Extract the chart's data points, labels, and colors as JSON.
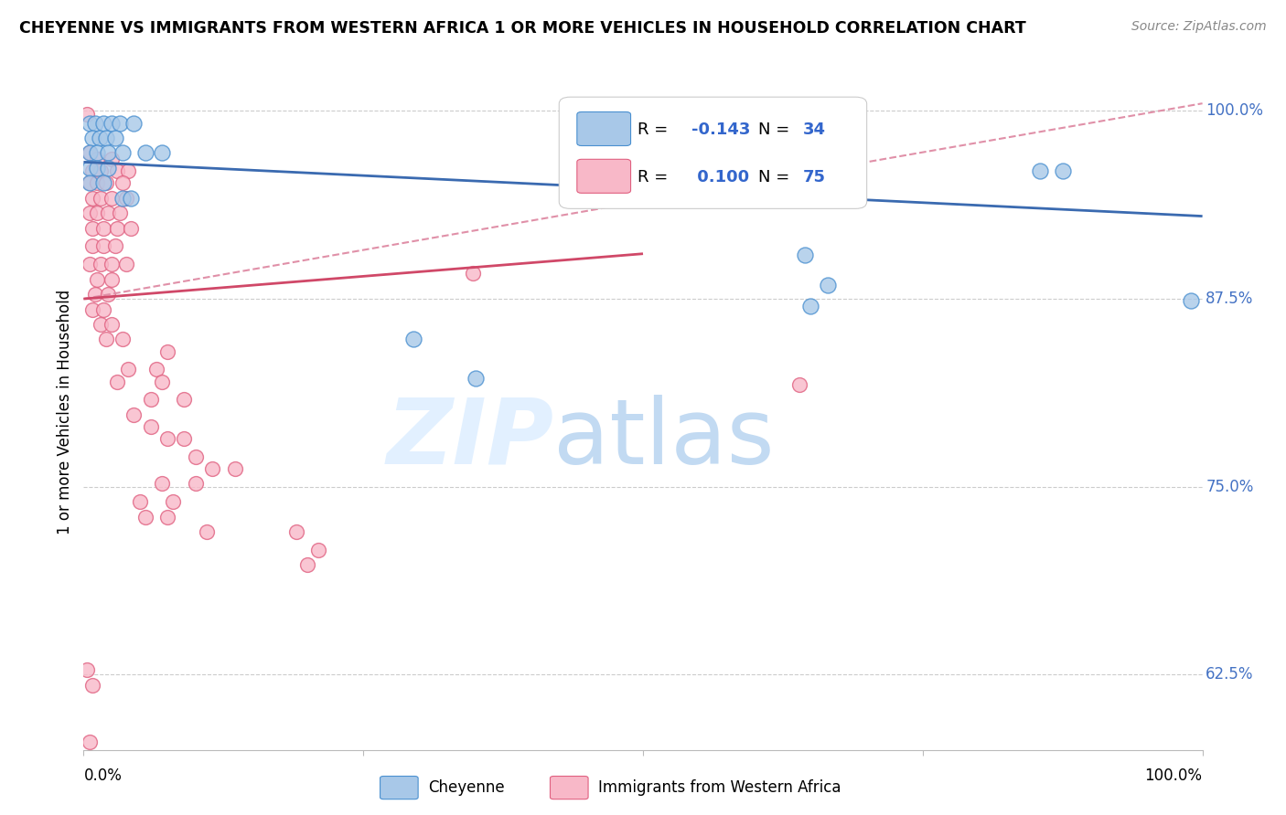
{
  "title": "CHEYENNE VS IMMIGRANTS FROM WESTERN AFRICA 1 OR MORE VEHICLES IN HOUSEHOLD CORRELATION CHART",
  "source": "Source: ZipAtlas.com",
  "ylabel": "1 or more Vehicles in Household",
  "xlim": [
    0.0,
    1.0
  ],
  "ylim": [
    0.575,
    1.025
  ],
  "yticks": [
    0.625,
    0.75,
    0.875,
    1.0
  ],
  "ytick_labels": [
    "62.5%",
    "75.0%",
    "87.5%",
    "100.0%"
  ],
  "blue_color": "#a8c8e8",
  "pink_color": "#f8b8c8",
  "blue_edge_color": "#4a90d0",
  "pink_edge_color": "#e06080",
  "blue_line_color": "#3a6ab0",
  "pink_line_color": "#d04868",
  "dashed_line_color": "#e090a8",
  "blue_trend": [
    0.0,
    0.966,
    1.0,
    0.93
  ],
  "pink_trend": [
    0.0,
    0.875,
    0.5,
    0.905
  ],
  "pink_dashed": [
    0.0,
    0.875,
    1.0,
    1.005
  ],
  "blue_points": [
    [
      0.005,
      0.992
    ],
    [
      0.01,
      0.992
    ],
    [
      0.018,
      0.992
    ],
    [
      0.025,
      0.992
    ],
    [
      0.032,
      0.992
    ],
    [
      0.045,
      0.992
    ],
    [
      0.008,
      0.982
    ],
    [
      0.014,
      0.982
    ],
    [
      0.02,
      0.982
    ],
    [
      0.028,
      0.982
    ],
    [
      0.005,
      0.972
    ],
    [
      0.012,
      0.972
    ],
    [
      0.022,
      0.972
    ],
    [
      0.035,
      0.972
    ],
    [
      0.055,
      0.972
    ],
    [
      0.07,
      0.972
    ],
    [
      0.005,
      0.962
    ],
    [
      0.012,
      0.962
    ],
    [
      0.022,
      0.962
    ],
    [
      0.005,
      0.952
    ],
    [
      0.018,
      0.952
    ],
    [
      0.035,
      0.942
    ],
    [
      0.042,
      0.942
    ],
    [
      0.295,
      0.848
    ],
    [
      0.35,
      0.822
    ],
    [
      0.645,
      0.904
    ],
    [
      0.665,
      0.884
    ],
    [
      0.855,
      0.96
    ],
    [
      0.875,
      0.96
    ],
    [
      0.65,
      0.87
    ],
    [
      0.99,
      0.874
    ]
  ],
  "pink_points": [
    [
      0.003,
      0.998
    ],
    [
      0.005,
      0.972
    ],
    [
      0.012,
      0.968
    ],
    [
      0.025,
      0.968
    ],
    [
      0.008,
      0.96
    ],
    [
      0.015,
      0.96
    ],
    [
      0.03,
      0.96
    ],
    [
      0.04,
      0.96
    ],
    [
      0.005,
      0.952
    ],
    [
      0.012,
      0.952
    ],
    [
      0.02,
      0.952
    ],
    [
      0.035,
      0.952
    ],
    [
      0.008,
      0.942
    ],
    [
      0.015,
      0.942
    ],
    [
      0.025,
      0.942
    ],
    [
      0.038,
      0.942
    ],
    [
      0.005,
      0.932
    ],
    [
      0.012,
      0.932
    ],
    [
      0.022,
      0.932
    ],
    [
      0.032,
      0.932
    ],
    [
      0.008,
      0.922
    ],
    [
      0.018,
      0.922
    ],
    [
      0.03,
      0.922
    ],
    [
      0.042,
      0.922
    ],
    [
      0.008,
      0.91
    ],
    [
      0.018,
      0.91
    ],
    [
      0.028,
      0.91
    ],
    [
      0.005,
      0.898
    ],
    [
      0.015,
      0.898
    ],
    [
      0.025,
      0.898
    ],
    [
      0.038,
      0.898
    ],
    [
      0.012,
      0.888
    ],
    [
      0.025,
      0.888
    ],
    [
      0.01,
      0.878
    ],
    [
      0.022,
      0.878
    ],
    [
      0.008,
      0.868
    ],
    [
      0.018,
      0.868
    ],
    [
      0.015,
      0.858
    ],
    [
      0.025,
      0.858
    ],
    [
      0.02,
      0.848
    ],
    [
      0.035,
      0.848
    ],
    [
      0.075,
      0.84
    ],
    [
      0.04,
      0.828
    ],
    [
      0.065,
      0.828
    ],
    [
      0.03,
      0.82
    ],
    [
      0.07,
      0.82
    ],
    [
      0.06,
      0.808
    ],
    [
      0.09,
      0.808
    ],
    [
      0.045,
      0.798
    ],
    [
      0.06,
      0.79
    ],
    [
      0.075,
      0.782
    ],
    [
      0.09,
      0.782
    ],
    [
      0.1,
      0.77
    ],
    [
      0.115,
      0.762
    ],
    [
      0.135,
      0.762
    ],
    [
      0.07,
      0.752
    ],
    [
      0.1,
      0.752
    ],
    [
      0.05,
      0.74
    ],
    [
      0.08,
      0.74
    ],
    [
      0.055,
      0.73
    ],
    [
      0.075,
      0.73
    ],
    [
      0.11,
      0.72
    ],
    [
      0.19,
      0.72
    ],
    [
      0.21,
      0.708
    ],
    [
      0.2,
      0.698
    ],
    [
      0.348,
      0.892
    ],
    [
      0.64,
      0.818
    ],
    [
      0.003,
      0.628
    ],
    [
      0.008,
      0.618
    ],
    [
      0.005,
      0.58
    ]
  ]
}
